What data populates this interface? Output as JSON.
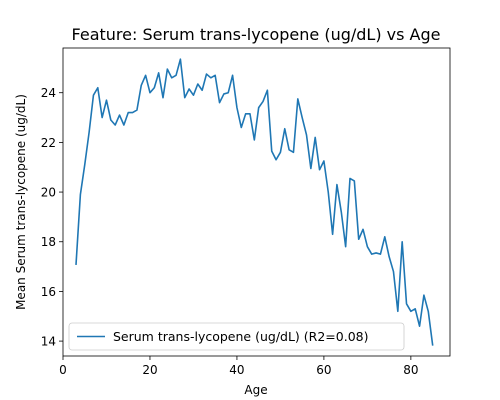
{
  "chart_data": {
    "type": "line",
    "title": "Feature: Serum trans-lycopene (ug/dL) vs Age",
    "xlabel": "Age",
    "ylabel": "Mean Serum trans-lycopene (ug/dL)",
    "xlim": [
      0,
      89
    ],
    "ylim": [
      13.4,
      25.8
    ],
    "xticks": [
      0,
      20,
      40,
      60,
      80
    ],
    "yticks": [
      14,
      16,
      18,
      20,
      22,
      24
    ],
    "grid": false,
    "legend_position": "bottom-left",
    "series": [
      {
        "name": "Serum trans-lycopene (ug/dL) (R2=0.08)",
        "color": "#1f77b4",
        "x": [
          3,
          4,
          5,
          6,
          7,
          8,
          9,
          10,
          11,
          12,
          13,
          14,
          15,
          16,
          17,
          18,
          19,
          20,
          21,
          22,
          23,
          24,
          25,
          26,
          27,
          28,
          29,
          30,
          31,
          32,
          33,
          34,
          35,
          36,
          37,
          38,
          39,
          40,
          41,
          42,
          43,
          44,
          45,
          46,
          47,
          48,
          49,
          50,
          51,
          52,
          53,
          54,
          55,
          56,
          57,
          58,
          59,
          60,
          61,
          62,
          63,
          64,
          65,
          66,
          67,
          68,
          69,
          70,
          71,
          72,
          73,
          74,
          75,
          76,
          77,
          78,
          79,
          80,
          81,
          82,
          83,
          84,
          85
        ],
        "y": [
          17.1,
          19.9,
          21.1,
          22.4,
          23.9,
          24.2,
          23.0,
          23.7,
          22.9,
          22.7,
          23.1,
          22.7,
          23.2,
          23.2,
          23.3,
          24.3,
          24.7,
          24.0,
          24.2,
          24.8,
          23.8,
          24.95,
          24.6,
          24.7,
          25.35,
          23.8,
          24.15,
          23.9,
          24.35,
          24.1,
          24.75,
          24.6,
          24.7,
          23.6,
          23.95,
          24.0,
          24.7,
          23.4,
          22.6,
          23.15,
          23.15,
          22.1,
          23.4,
          23.65,
          24.1,
          21.65,
          21.3,
          21.6,
          22.55,
          21.7,
          21.6,
          23.75,
          23.0,
          22.3,
          20.95,
          22.2,
          20.9,
          21.25,
          20.0,
          18.3,
          20.3,
          19.2,
          17.8,
          20.55,
          20.45,
          18.1,
          18.5,
          17.8,
          17.5,
          17.55,
          17.5,
          18.2,
          17.4,
          16.8,
          15.2,
          18.0,
          15.5,
          15.2,
          15.3,
          14.6,
          15.85,
          15.2,
          13.85
        ]
      }
    ]
  }
}
